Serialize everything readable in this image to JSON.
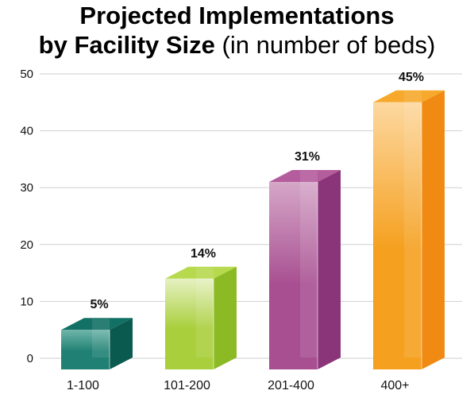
{
  "title": {
    "line1": "Projected Implementations",
    "line2_bold": "by Facility Size",
    "line2_light": " (in number of beds)"
  },
  "chart_data": {
    "type": "bar",
    "title": "Projected Implementations by Facility Size (in number of beds)",
    "categories": [
      "1-100",
      "101-200",
      "201-400",
      "400+"
    ],
    "values": [
      5,
      14,
      31,
      45
    ],
    "data_labels": [
      "5%",
      "14%",
      "31%",
      "45%"
    ],
    "ylim": [
      0,
      50
    ],
    "yticks": [
      0,
      10,
      20,
      30,
      40,
      50
    ],
    "grid": true,
    "legend": "none",
    "style": "3d-column",
    "colors": [
      {
        "front": "#1f8073",
        "light": "#6fb5aa",
        "side": "#0b5a50",
        "top": "#127064"
      },
      {
        "front": "#a9cf3c",
        "light": "#e6f1c2",
        "side": "#8cba25",
        "top": "#b7d94d"
      },
      {
        "front": "#a84f91",
        "light": "#d5a7c8",
        "side": "#8a3479",
        "top": "#b45c9c"
      },
      {
        "front": "#f5a01f",
        "light": "#fdd8a0",
        "side": "#f18a12",
        "top": "#f6a92c"
      }
    ]
  }
}
